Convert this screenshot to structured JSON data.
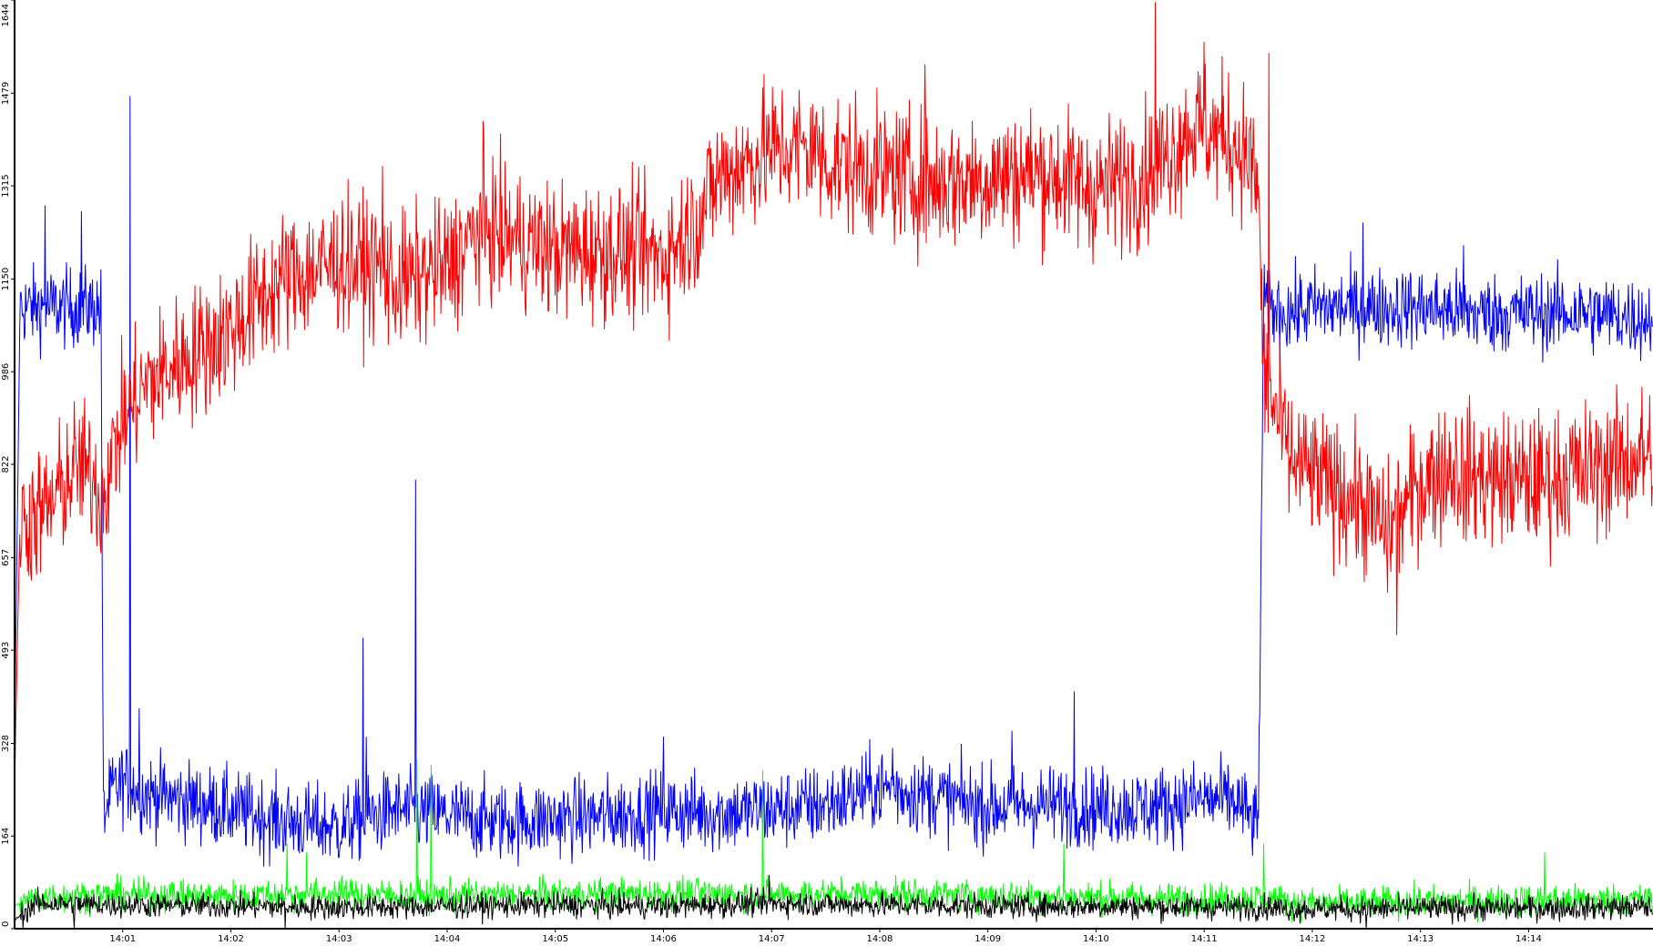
{
  "chart_data": {
    "type": "line",
    "title": "",
    "xlabel": "",
    "ylabel": "",
    "x_unit": "minutes after 14:00",
    "xlim": [
      0.0,
      15.15
    ],
    "ylim": [
      0,
      1644
    ],
    "grid": false,
    "legend": "none",
    "y_ticks": [
      0,
      164,
      328,
      493,
      657,
      822,
      986,
      1150,
      1315,
      1479,
      1644
    ],
    "y_tick_labels": [
      "0",
      "164",
      "328",
      "493",
      "657",
      "822",
      "986",
      "1150",
      "1315",
      "1479",
      "1644"
    ],
    "x_ticks": [
      1,
      2,
      3,
      4,
      5,
      6,
      7,
      8,
      9,
      10,
      11,
      12,
      13,
      14
    ],
    "x_tick_labels": [
      "14:01",
      "14:02",
      "14:03",
      "14:04",
      "14:05",
      "14:06",
      "14:07",
      "14:08",
      "14:09",
      "14:10",
      "14:11",
      "14:12",
      "14:13",
      "14:14"
    ],
    "series": [
      {
        "color": "#ff0000",
        "x": [
          0.0,
          0.05,
          0.3,
          0.5,
          0.6,
          0.75,
          0.8,
          0.9,
          1.0,
          1.1,
          1.2,
          1.5,
          2.0,
          2.3,
          2.5,
          3.0,
          3.4,
          3.5,
          4.0,
          4.3,
          5.0,
          5.5,
          6.0,
          6.1,
          6.3,
          6.5,
          7.0,
          7.3,
          7.5,
          8.0,
          8.5,
          9.0,
          9.5,
          10.0,
          10.5,
          10.9,
          11.2,
          11.4,
          11.5,
          11.55,
          11.8,
          12.0,
          12.4,
          12.7,
          13.0,
          13.3,
          13.5,
          14.0,
          14.5,
          15.1
        ],
        "y": [
          250,
          720,
          740,
          800,
          820,
          790,
          760,
          830,
          900,
          930,
          960,
          1000,
          1060,
          1120,
          1150,
          1180,
          1170,
          1140,
          1170,
          1240,
          1200,
          1200,
          1190,
          1210,
          1250,
          1330,
          1380,
          1380,
          1360,
          1340,
          1320,
          1330,
          1340,
          1310,
          1340,
          1420,
          1400,
          1370,
          1310,
          980,
          830,
          800,
          760,
          700,
          790,
          820,
          800,
          790,
          810,
          840
        ],
        "noise": 60
      },
      {
        "color": "#0000ff",
        "x": [
          0.0,
          0.05,
          0.3,
          0.7,
          0.8,
          0.82,
          0.9,
          1.0,
          1.2,
          1.5,
          2.0,
          2.5,
          3.0,
          3.5,
          4.0,
          4.5,
          5.0,
          5.5,
          6.0,
          6.5,
          7.0,
          7.5,
          8.0,
          8.5,
          9.0,
          9.5,
          10.0,
          10.5,
          11.0,
          11.3,
          11.5,
          11.55,
          11.8,
          12.0,
          12.5,
          13.0,
          13.5,
          14.0,
          14.5,
          15.1
        ],
        "y": [
          320,
          1100,
          1100,
          1100,
          1100,
          200,
          240,
          260,
          240,
          230,
          210,
          190,
          180,
          210,
          200,
          190,
          195,
          200,
          210,
          205,
          210,
          220,
          250,
          235,
          215,
          220,
          215,
          215,
          230,
          225,
          180,
          1100,
          1090,
          1100,
          1100,
          1100,
          1090,
          1090,
          1090,
          1080
        ],
        "noise": 35
      },
      {
        "color": "#00ff00",
        "x": [
          0.0,
          0.2,
          1.0,
          2.0,
          3.0,
          4.0,
          5.0,
          6.0,
          7.0,
          8.0,
          9.0,
          10.0,
          11.0,
          11.6,
          11.8,
          12.5,
          13.0,
          14.0,
          15.1
        ],
        "y": [
          40,
          55,
          60,
          58,
          62,
          58,
          60,
          62,
          60,
          62,
          58,
          55,
          52,
          55,
          45,
          45,
          48,
          50,
          52
        ],
        "noise": 14
      },
      {
        "color": "#000000",
        "x": [
          0.0,
          0.2,
          1.0,
          2.0,
          3.0,
          4.0,
          5.0,
          6.0,
          7.0,
          8.0,
          9.0,
          10.0,
          11.0,
          11.6,
          11.8,
          12.5,
          13.0,
          14.0,
          15.1
        ],
        "y": [
          15,
          45,
          42,
          40,
          38,
          40,
          42,
          40,
          45,
          42,
          40,
          40,
          38,
          38,
          35,
          35,
          36,
          36,
          38
        ],
        "noise": 11
      }
    ],
    "spikes": [
      {
        "series": 1,
        "x": 0.28,
        "y": 1280
      },
      {
        "series": 1,
        "x": 0.62,
        "y": 1270
      },
      {
        "series": 1,
        "x": 1.07,
        "y": 1474
      },
      {
        "series": 1,
        "x": 1.15,
        "y": 390
      },
      {
        "series": 1,
        "x": 3.22,
        "y": 515
      },
      {
        "series": 1,
        "x": 3.71,
        "y": 795
      },
      {
        "series": 1,
        "x": 3.25,
        "y": 340
      },
      {
        "series": 1,
        "x": 6.0,
        "y": 340
      },
      {
        "series": 1,
        "x": 8.12,
        "y": 320
      },
      {
        "series": 1,
        "x": 9.22,
        "y": 350
      },
      {
        "series": 1,
        "x": 9.8,
        "y": 420
      },
      {
        "series": 1,
        "x": 12.47,
        "y": 1250
      },
      {
        "series": 1,
        "x": 13.4,
        "y": 1210
      },
      {
        "series": 0,
        "x": 10.55,
        "y": 1640
      },
      {
        "series": 0,
        "x": 3.4,
        "y": 1350
      },
      {
        "series": 0,
        "x": 4.33,
        "y": 1430
      },
      {
        "series": 0,
        "x": 7.38,
        "y": 1460
      },
      {
        "series": 0,
        "x": 8.42,
        "y": 1530
      },
      {
        "series": 0,
        "x": 11.0,
        "y": 1570
      },
      {
        "series": 0,
        "x": 11.6,
        "y": 1550
      },
      {
        "series": 0,
        "x": 12.78,
        "y": 520
      },
      {
        "series": 0,
        "x": 13.4,
        "y": 690
      },
      {
        "series": 2,
        "x": 2.52,
        "y": 150
      },
      {
        "series": 2,
        "x": 2.7,
        "y": 135
      },
      {
        "series": 2,
        "x": 3.72,
        "y": 300
      },
      {
        "series": 2,
        "x": 3.85,
        "y": 290
      },
      {
        "series": 2,
        "x": 6.92,
        "y": 280
      },
      {
        "series": 2,
        "x": 9.7,
        "y": 150
      },
      {
        "series": 2,
        "x": 11.55,
        "y": 150
      },
      {
        "series": 2,
        "x": 14.15,
        "y": 135
      },
      {
        "series": 3,
        "x": 2.5,
        "y": 0
      },
      {
        "series": 3,
        "x": 0.55,
        "y": 0
      },
      {
        "series": 3,
        "x": 6.98,
        "y": 95
      },
      {
        "series": 3,
        "x": 12.5,
        "y": 0
      }
    ]
  }
}
